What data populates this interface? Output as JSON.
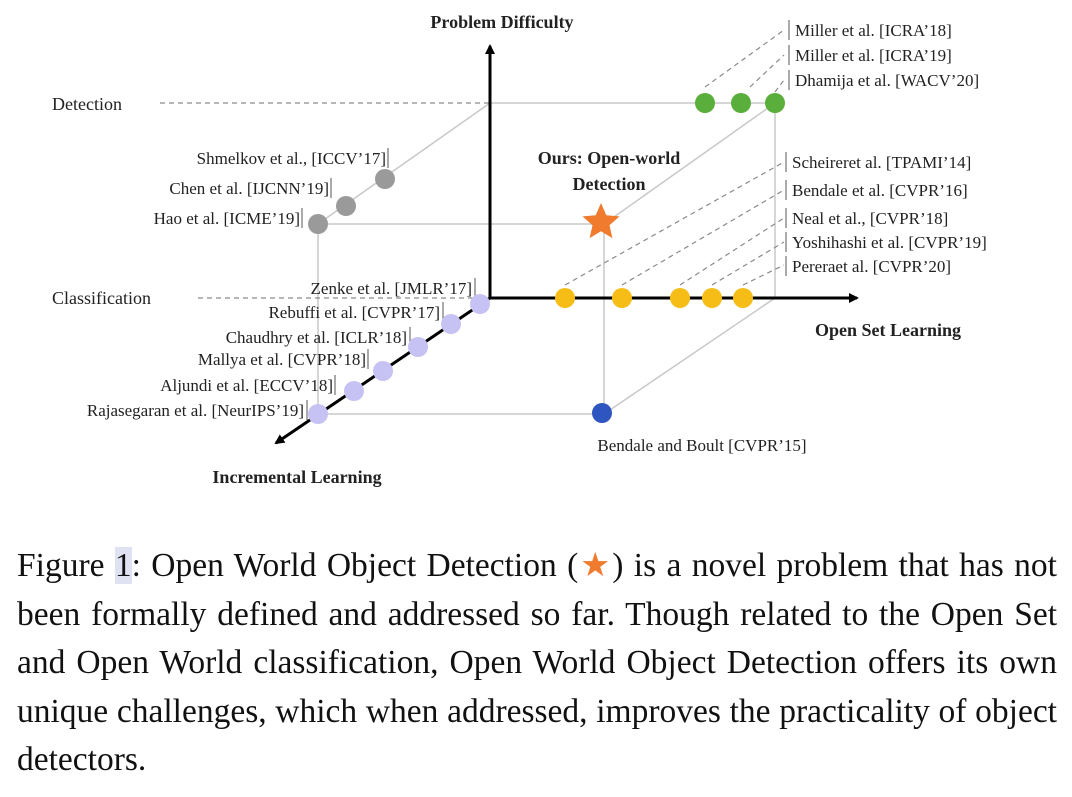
{
  "figure": {
    "axes": {
      "vertical": "Problem Difficulty",
      "horizontal": "Open Set Learning",
      "depth": "Incremental Learning"
    },
    "levels": {
      "detection": "Detection",
      "classification": "Classification"
    },
    "ours": {
      "label_line1": "Ours: Open-world",
      "label_line2": "Detection"
    },
    "groups": {
      "open_world_detection": {
        "color": "#5aae3b",
        "refs": [
          "Miller et al. [ICRA’18]",
          "Miller et al. [ICRA’19]",
          "Dhamija et al. [WACV’20]"
        ]
      },
      "open_set_classification": {
        "color": "#f5bd16",
        "refs": [
          "Scheireret al. [TPAMI’14]",
          "Bendale et al. [CVPR’16]",
          "Neal et al., [CVPR’18]",
          "Yoshihashi et al. [CVPR’19]",
          "Pereraet al. [CVPR’20]"
        ]
      },
      "incremental_detection": {
        "color": "#9a9a9a",
        "refs": [
          "Shmelkov et al., [ICCV’17]",
          "Chen et al. [IJCNN’19]",
          "Hao et al. [ICME’19]"
        ]
      },
      "incremental_classification": {
        "color": "#c6c2f3",
        "refs": [
          "Zenke et al. [JMLR’17]",
          "Rebuffi et al. [CVPR’17]",
          "Chaudhry et al. [ICLR’18]",
          "Mallya et al. [CVPR’18]",
          "Aljundi et al. [ECCV’18]",
          "Rajasegaran et al. [NeurIPS’19]"
        ]
      },
      "open_world_classification": {
        "color": "#2f55c0",
        "refs": [
          "Bendale and Boult [CVPR’15]"
        ]
      }
    },
    "star_color": "#f07a2d"
  },
  "caption": {
    "prefix": "Figure ",
    "number": "1",
    "text_before_star": ": Open World Object Detection (",
    "star": "★",
    "text_after_star": ") is a novel problem that has not been formally defined and addressed so far. Though related to the Open Set and Open World classification, Open World Object Detection offers its own unique challenges, which when addressed, improves the practicality of object detectors."
  }
}
